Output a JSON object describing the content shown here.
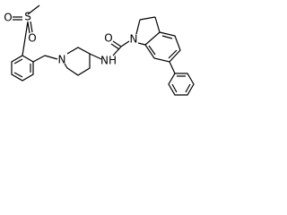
{
  "atom_labels": [
    "O",
    "S",
    "O",
    "N",
    "NH",
    "O",
    "N"
  ]
}
